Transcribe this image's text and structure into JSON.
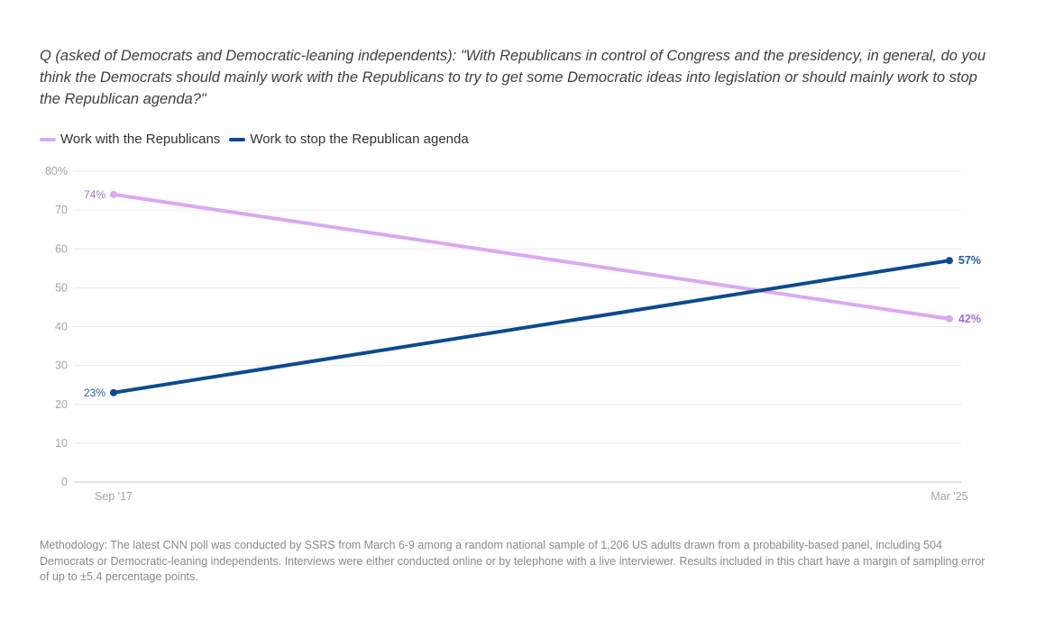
{
  "question": "Q (asked of Democrats and Democratic-leaning independents): \"With Republicans in control of Congress and the presidency, in general, do you think the Democrats should mainly work with the Republicans to try to get some Democratic ideas into legislation or should mainly work to stop the Republican agenda?\"",
  "methodology": "Methodology: The latest CNN poll was conducted by SSRS from March 6-9 among a random national sample of 1,206 US adults drawn from a probability-based panel, including 504 Democrats or Democratic-leaning independents. Interviews were either conducted online or by telephone with a live interviewer. Results included in this chart have a margin of sampling error of up to ±5.4 percentage points.",
  "chart_data": {
    "type": "line",
    "title": "",
    "xlabel": "",
    "ylabel": "",
    "categories": [
      "Sep '17",
      "Mar '25"
    ],
    "ylim": [
      0,
      80
    ],
    "yticks": [
      0,
      10,
      20,
      30,
      40,
      50,
      60,
      70,
      80
    ],
    "ytick_labels": [
      "0",
      "10",
      "20",
      "30",
      "40",
      "50",
      "60",
      "70",
      "80%"
    ],
    "grid": true,
    "legend_position": "top-left",
    "series": [
      {
        "name": "Work with the Republicans",
        "color": "#d9a9f2",
        "label_color": "#a66fd0",
        "values": [
          74,
          42
        ],
        "point_labels": [
          "74%",
          "42%"
        ]
      },
      {
        "name": "Work to stop the Republican agenda",
        "color": "#0d4a8f",
        "label_color": "#2a5d9e",
        "values": [
          23,
          57
        ],
        "point_labels": [
          "23%",
          "57%"
        ]
      }
    ]
  }
}
